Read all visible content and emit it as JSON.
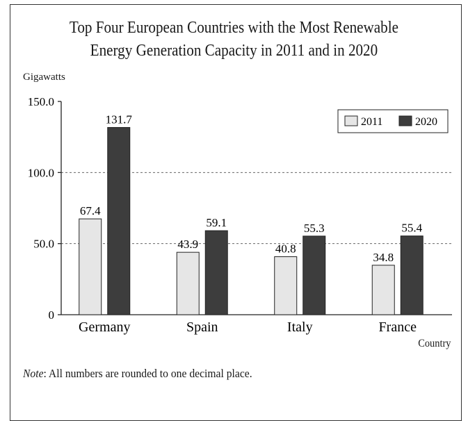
{
  "chart_data": {
    "type": "bar",
    "title": "Top Four European Countries with the Most Renewable Energy Generation Capacity in 2011 and in 2020",
    "title_lines": [
      "Top Four European Countries with the Most Renewable",
      "Energy Generation Capacity in 2011 and in 2020"
    ],
    "ylabel": "Gigawatts",
    "xlabel": "Country",
    "ylim": [
      0,
      150
    ],
    "yticks": [
      0,
      50,
      100,
      150
    ],
    "ytick_labels": [
      "0",
      "50.0",
      "100.0",
      "150.0"
    ],
    "categories": [
      "Germany",
      "Spain",
      "Italy",
      "France"
    ],
    "series": [
      {
        "name": "2011",
        "values": [
          67.4,
          43.9,
          40.8,
          34.8
        ],
        "value_labels": [
          "67.4",
          "43.9",
          "40.8",
          "34.8"
        ],
        "color": "#e6e6e6"
      },
      {
        "name": "2020",
        "values": [
          131.7,
          59.1,
          55.3,
          55.4
        ],
        "value_labels": [
          "131.7",
          "59.1",
          "55.3",
          "55.4"
        ],
        "color": "#3d3d3d"
      }
    ],
    "grid": "dashed horizontal at 50 and 100",
    "legend_position": "top-right"
  },
  "note": {
    "label": "Note",
    "text": ": All numbers are rounded to one decimal place."
  }
}
